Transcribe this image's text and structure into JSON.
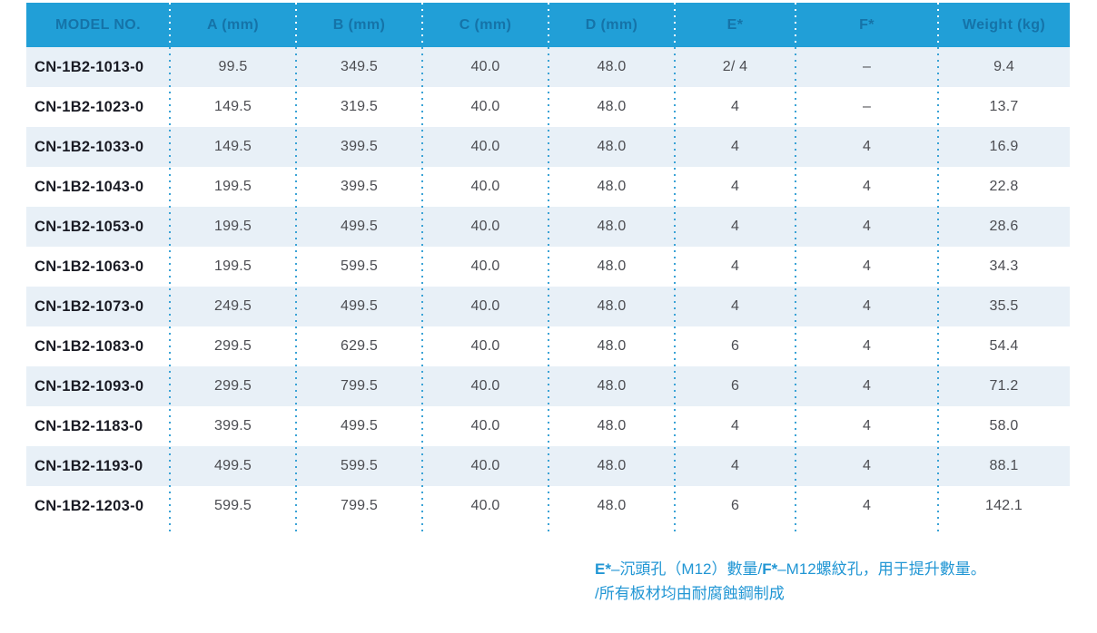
{
  "table": {
    "columns": [
      "MODEL NO.",
      "A (mm)",
      "B (mm)",
      "C (mm)",
      "D (mm)",
      "E*",
      "F*",
      "Weight (kg)"
    ],
    "rows": [
      {
        "cells": [
          "CN-1B2-1013-0",
          "99.5",
          "349.5",
          "40.0",
          "48.0",
          "2/ 4",
          "–",
          "9.4"
        ]
      },
      {
        "cells": [
          "CN-1B2-1023-0",
          "149.5",
          "319.5",
          "40.0",
          "48.0",
          "4",
          "–",
          "13.7"
        ]
      },
      {
        "cells": [
          "CN-1B2-1033-0",
          "149.5",
          "399.5",
          "40.0",
          "48.0",
          "4",
          "4",
          "16.9"
        ]
      },
      {
        "cells": [
          "CN-1B2-1043-0",
          "199.5",
          "399.5",
          "40.0",
          "48.0",
          "4",
          "4",
          "22.8"
        ]
      },
      {
        "cells": [
          "CN-1B2-1053-0",
          "199.5",
          "499.5",
          "40.0",
          "48.0",
          "4",
          "4",
          "28.6"
        ]
      },
      {
        "cells": [
          "CN-1B2-1063-0",
          "199.5",
          "599.5",
          "40.0",
          "48.0",
          "4",
          "4",
          "34.3"
        ]
      },
      {
        "cells": [
          "CN-1B2-1073-0",
          "249.5",
          "499.5",
          "40.0",
          "48.0",
          "4",
          "4",
          "35.5"
        ]
      },
      {
        "cells": [
          "CN-1B2-1083-0",
          "299.5",
          "629.5",
          "40.0",
          "48.0",
          "6",
          "4",
          "54.4"
        ]
      },
      {
        "cells": [
          "CN-1B2-1093-0",
          "299.5",
          "799.5",
          "40.0",
          "48.0",
          "6",
          "4",
          "71.2"
        ]
      },
      {
        "cells": [
          "CN-1B2-1183-0",
          "399.5",
          "499.5",
          "40.0",
          "48.0",
          "4",
          "4",
          "58.0"
        ]
      },
      {
        "cells": [
          "CN-1B2-1193-0",
          "499.5",
          "599.5",
          "40.0",
          "48.0",
          "4",
          "4",
          "88.1"
        ]
      },
      {
        "cells": [
          "CN-1B2-1203-0",
          "599.5",
          "799.5",
          "40.0",
          "48.0",
          "6",
          "4",
          "142.1"
        ]
      }
    ]
  },
  "footnote": {
    "line1_segments": [
      {
        "text": "E*",
        "bold": true
      },
      {
        "text": "–沉頭孔（M12）數量/",
        "bold": false
      },
      {
        "text": "F*",
        "bold": true
      },
      {
        "text": "–M12螺紋孔，用于提升數量。",
        "bold": false
      }
    ],
    "line2": "/所有板材均由耐腐蝕鋼制成"
  },
  "colors": {
    "header_bg": "#219fd7",
    "header_text": "#1573a8",
    "row_alt": "#e8f0f7",
    "dot_blue": "#3ba3d6",
    "model_text": "#1a1b24",
    "value_text": "#4c4d52",
    "footnote_blue": "#2196d4"
  }
}
